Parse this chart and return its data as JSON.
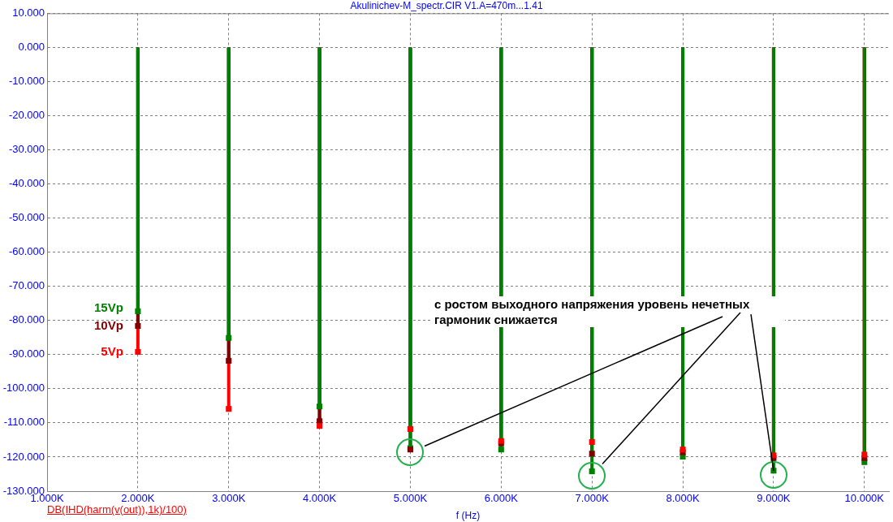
{
  "chart_data": {
    "type": "lollipop",
    "title": "Akulinichev-M_spectr.CIR V1.A=470m...1.41",
    "xlabel": "f (Hz)",
    "x": [
      2000,
      3000,
      4000,
      5000,
      6000,
      7000,
      8000,
      9000,
      10000
    ],
    "series": [
      {
        "name": "5Vp",
        "color": "#ff0000",
        "values": [
          -89.2,
          -105.9,
          -110.9,
          -111.8,
          -115.3,
          -115.6,
          -117.8,
          -119.5,
          -119.3
        ]
      },
      {
        "name": "10Vp",
        "color": "#800000",
        "values": [
          -81.6,
          -91.8,
          -109.5,
          -117.8,
          -116.0,
          -119.0,
          -118.6,
          -120.3,
          -120.3
        ]
      },
      {
        "name": "15Vp",
        "color": "#008000",
        "values": [
          -77.3,
          -85.1,
          -105.2,
          -117.4,
          -117.8,
          -124.2,
          -119.9,
          -124.0,
          -121.5
        ]
      }
    ],
    "xlim": [
      1000,
      10270
    ],
    "xticks": [
      {
        "value": 1000,
        "label": "1.000K"
      },
      {
        "value": 2000,
        "label": "2.000K"
      },
      {
        "value": 3000,
        "label": "3.000K"
      },
      {
        "value": 4000,
        "label": "4.000K"
      },
      {
        "value": 5000,
        "label": "5.000K"
      },
      {
        "value": 6000,
        "label": "6.000K"
      },
      {
        "value": 7000,
        "label": "7.000K"
      },
      {
        "value": 8000,
        "label": "8.000K"
      },
      {
        "value": 9000,
        "label": "9.000K"
      },
      {
        "value": 10000,
        "label": "10.000K"
      }
    ],
    "ylim": [
      -130,
      10
    ],
    "yticks": [
      {
        "value": 10,
        "label": "10.000"
      },
      {
        "value": 0,
        "label": "0.000"
      },
      {
        "value": -10,
        "label": "-10.000"
      },
      {
        "value": -20,
        "label": "-20.000"
      },
      {
        "value": -30,
        "label": "-30.000"
      },
      {
        "value": -40,
        "label": "-40.000"
      },
      {
        "value": -50,
        "label": "-50.000"
      },
      {
        "value": -60,
        "label": "-60.000"
      },
      {
        "value": -70,
        "label": "-70.000"
      },
      {
        "value": -80,
        "label": "-80.000"
      },
      {
        "value": -90,
        "label": "-90.000"
      },
      {
        "value": -100,
        "label": "-100.000"
      },
      {
        "value": -110,
        "label": "-110.000"
      },
      {
        "value": -120,
        "label": "-120.000"
      },
      {
        "value": -130,
        "label": "-130.000"
      }
    ],
    "annotations": [
      "DB(IHD(harm(v(out)),1k)/100)",
      {
        "text": "с ростом выходного напряжения уровень нечетных гармоник снижается",
        "x": 9000,
        "y": -124.0
      }
    ],
    "grid": true,
    "legend": false,
    "marker": "square",
    "line_style": "solid"
  }
}
